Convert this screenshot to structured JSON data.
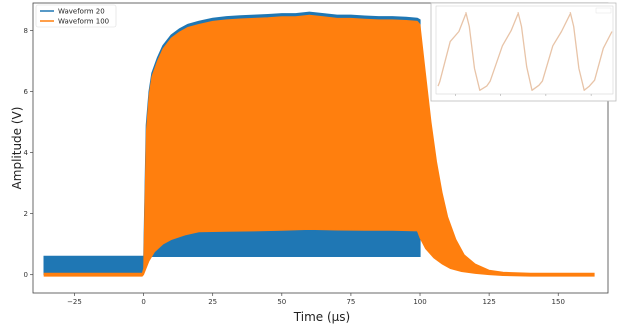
{
  "chart_data": {
    "type": "area",
    "xlabel": "Time (µs)",
    "ylabel": "Amplitude (V)",
    "xlim": [
      -40,
      168
    ],
    "ylim": [
      -0.6,
      8.9
    ],
    "xticks": [
      -25,
      0,
      25,
      50,
      75,
      100,
      125,
      150
    ],
    "yticks": [
      0,
      2,
      4,
      6,
      8
    ],
    "grid": false,
    "legend_position": "top-left",
    "series": [
      {
        "name": "Waveform 20",
        "color": "#1f77b4",
        "role": "upper envelope",
        "x": [
          -36,
          -0.5,
          0,
          1,
          2,
          3,
          5,
          7,
          10,
          13,
          16,
          20,
          25,
          30,
          35,
          40,
          45,
          50,
          55,
          60,
          65,
          70,
          75,
          80,
          85,
          90,
          95,
          99,
          100
        ],
        "y": [
          0.0,
          0.0,
          0.2,
          4.9,
          6.0,
          6.6,
          7.1,
          7.5,
          7.85,
          8.05,
          8.2,
          8.3,
          8.4,
          8.45,
          8.48,
          8.5,
          8.52,
          8.55,
          8.55,
          8.6,
          8.55,
          8.5,
          8.5,
          8.47,
          8.45,
          8.45,
          8.43,
          8.4,
          8.35
        ]
      },
      {
        "name": "Waveform 100",
        "color": "#ff7f0e",
        "upper": {
          "x": [
            -36,
            -0.5,
            0,
            1,
            2,
            3,
            5,
            7,
            10,
            13,
            16,
            20,
            25,
            30,
            35,
            40,
            45,
            50,
            55,
            60,
            65,
            70,
            75,
            80,
            85,
            90,
            95,
            99,
            100,
            102,
            104,
            106,
            108,
            110,
            113,
            116,
            120,
            125,
            130,
            140,
            150,
            163
          ],
          "y": [
            0.05,
            0.05,
            0.2,
            4.7,
            5.9,
            6.5,
            7.0,
            7.4,
            7.75,
            7.95,
            8.1,
            8.2,
            8.3,
            8.35,
            8.38,
            8.4,
            8.42,
            8.45,
            8.45,
            8.5,
            8.45,
            8.4,
            8.4,
            8.37,
            8.35,
            8.35,
            8.33,
            8.3,
            8.2,
            6.6,
            5.0,
            3.7,
            2.7,
            1.9,
            1.15,
            0.65,
            0.35,
            0.15,
            0.08,
            0.05,
            0.05,
            0.05
          ]
        },
        "lower": {
          "x": [
            -36,
            -0.5,
            0,
            2,
            4,
            7,
            10,
            15,
            20,
            30,
            40,
            50,
            60,
            70,
            80,
            90,
            99,
            100,
            102,
            105,
            108,
            111,
            115,
            120,
            125,
            130,
            140,
            150,
            163
          ],
          "y": [
            -0.05,
            -0.05,
            0.0,
            0.45,
            0.75,
            1.0,
            1.15,
            1.3,
            1.4,
            1.42,
            1.43,
            1.45,
            1.48,
            1.46,
            1.45,
            1.45,
            1.43,
            1.2,
            0.85,
            0.55,
            0.35,
            0.2,
            0.1,
            0.04,
            0.0,
            -0.03,
            -0.05,
            -0.05,
            -0.05
          ]
        }
      }
    ]
  },
  "inset": {
    "legend_label": "",
    "color": "#e8c4a8",
    "segments": [
      [
        [
          0.0,
          0.07
        ],
        [
          0.01,
          0.12
        ],
        [
          0.07,
          0.6
        ],
        [
          0.12,
          0.72
        ],
        [
          0.16,
          0.93
        ]
      ],
      [
        [
          0.16,
          0.95
        ],
        [
          0.18,
          0.78
        ],
        [
          0.21,
          0.28
        ],
        [
          0.24,
          0.02
        ],
        [
          0.28,
          0.07
        ],
        [
          0.3,
          0.13
        ],
        [
          0.37,
          0.55
        ],
        [
          0.42,
          0.73
        ],
        [
          0.46,
          0.93
        ]
      ],
      [
        [
          0.46,
          0.95
        ],
        [
          0.48,
          0.78
        ],
        [
          0.51,
          0.3
        ],
        [
          0.54,
          0.02
        ],
        [
          0.58,
          0.08
        ],
        [
          0.6,
          0.13
        ],
        [
          0.66,
          0.55
        ],
        [
          0.71,
          0.72
        ],
        [
          0.76,
          0.93
        ]
      ],
      [
        [
          0.76,
          0.95
        ],
        [
          0.78,
          0.78
        ],
        [
          0.81,
          0.28
        ],
        [
          0.84,
          0.02
        ],
        [
          0.87,
          0.07
        ],
        [
          0.9,
          0.14
        ],
        [
          0.95,
          0.52
        ],
        [
          1.0,
          0.72
        ]
      ]
    ]
  }
}
